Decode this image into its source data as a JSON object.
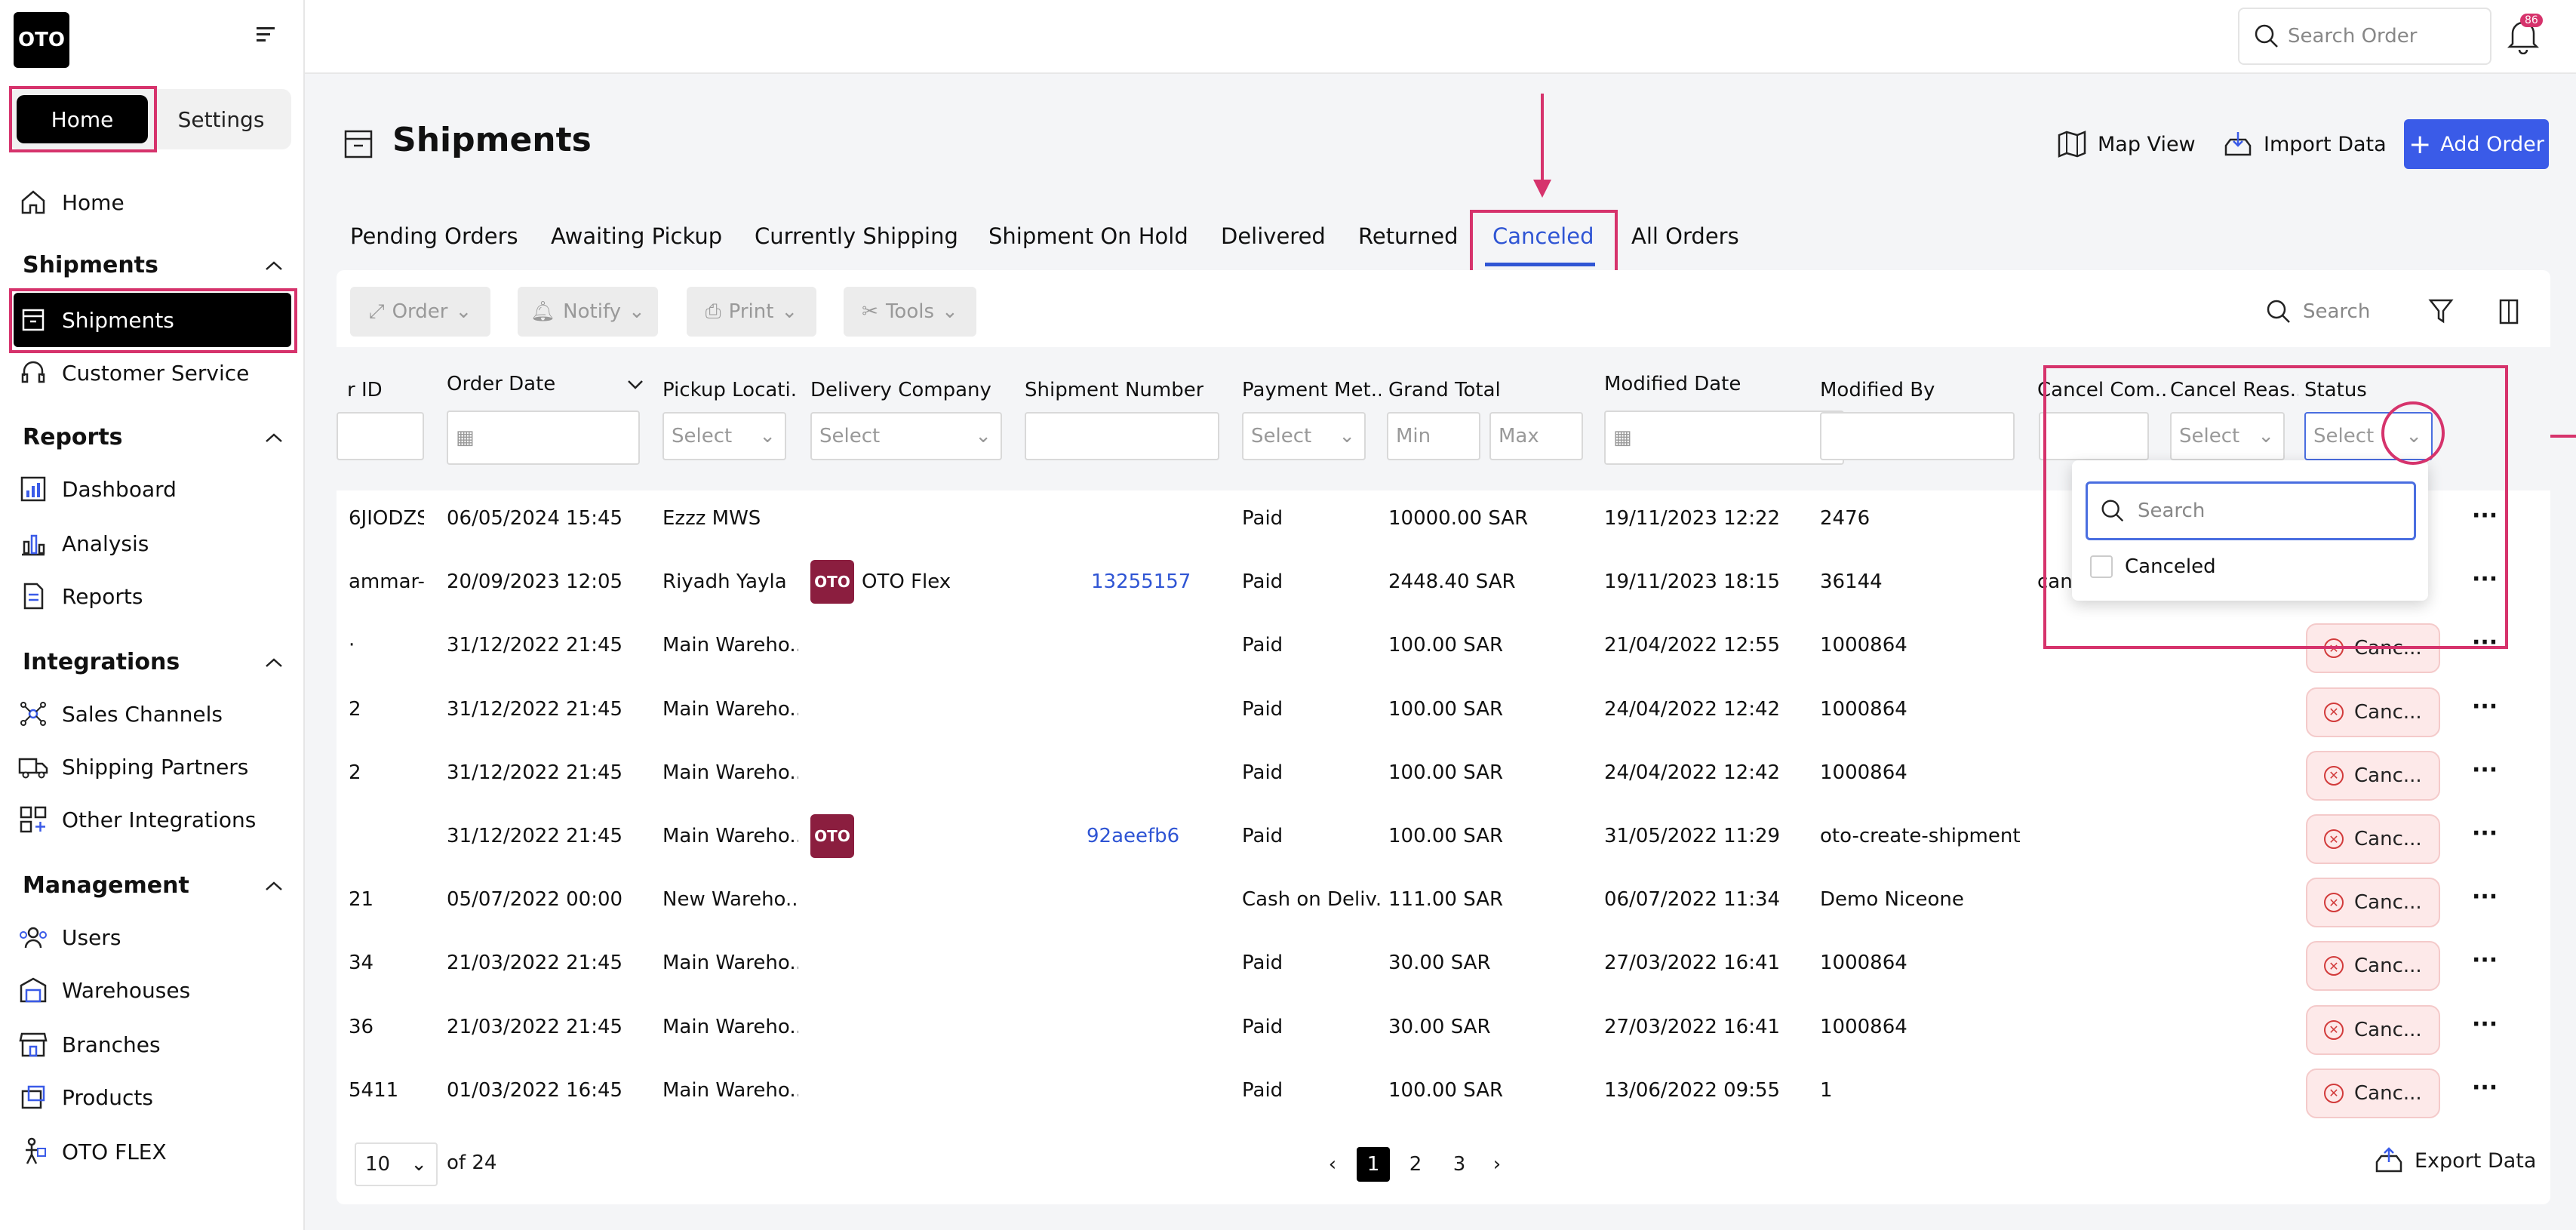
{
  "sidebar": {
    "logo": "OTO",
    "seg_home": "Home",
    "seg_settings": "Settings",
    "home": "Home",
    "sections": {
      "shipments": "Shipments",
      "reports": "Reports",
      "integrations": "Integrations",
      "management": "Management"
    },
    "items": {
      "shipments": "Shipments",
      "customer_service": "Customer Service",
      "dashboard": "Dashboard",
      "analysis": "Analysis",
      "reports": "Reports",
      "sales_channels": "Sales Channels",
      "shipping_partners": "Shipping Partners",
      "other_integrations": "Other Integrations",
      "users": "Users",
      "warehouses": "Warehouses",
      "branches": "Branches",
      "products": "Products",
      "oto_flex": "OTO FLEX"
    }
  },
  "topbar": {
    "search_placeholder": "Search Order",
    "badge": "86"
  },
  "page": {
    "title": "Shipments",
    "map_view": "Map View",
    "import_data": "Import Data",
    "add_order": "Add Order"
  },
  "tabs": [
    "Pending Orders",
    "Awaiting Pickup",
    "Currently Shipping",
    "Shipment On Hold",
    "Delivered",
    "Returned",
    "Canceled",
    "All Orders"
  ],
  "toolbar": {
    "order": "Order",
    "notify": "Notify",
    "print": "Print",
    "tools": "Tools",
    "search": "Search"
  },
  "columns": {
    "id": "r ID",
    "order_date": "Order Date",
    "pickup": "Pickup Locati...",
    "delivery": "Delivery Company",
    "shipment_number": "Shipment Number",
    "payment": "Payment Met...",
    "grand_total": "Grand Total",
    "modified_date": "Modified Date",
    "modified_by": "Modified By",
    "cancel_com": "Cancel Com...",
    "cancel_reason": "Cancel Reas...",
    "status": "Status"
  },
  "filters": {
    "select": "Select",
    "min": "Min",
    "max": "Max"
  },
  "dropdown": {
    "search_placeholder": "Search",
    "option": "Canceled"
  },
  "rows": [
    {
      "id": "6JIODZS...",
      "date": "06/05/2024 15:45",
      "pickup": "Ezzz MWS",
      "delivery": "",
      "logo": "",
      "shipment": "",
      "payment": "Paid",
      "total": "10000.00 SAR",
      "modified": "19/11/2023 12:22",
      "by": "2476",
      "cancel_com": "",
      "status": ""
    },
    {
      "id": "ammar-1...",
      "date": "20/09/2023 12:05",
      "pickup": "Riyadh Yayla",
      "delivery": "OTO Flex",
      "logo": "OTO",
      "shipment": "13255157",
      "payment": "Paid",
      "total": "2448.40 SAR",
      "modified": "19/11/2023 18:15",
      "by": "36144",
      "cancel_com": "can",
      "status": ""
    },
    {
      "id": "·",
      "date": "31/12/2022 21:45",
      "pickup": "Main Wareho...",
      "delivery": "",
      "logo": "",
      "shipment": "",
      "payment": "Paid",
      "total": "100.00 SAR",
      "modified": "21/04/2022 12:55",
      "by": "1000864",
      "cancel_com": "",
      "status": "Canc..."
    },
    {
      "id": "2",
      "date": "31/12/2022 21:45",
      "pickup": "Main Wareho...",
      "delivery": "",
      "logo": "",
      "shipment": "",
      "payment": "Paid",
      "total": "100.00 SAR",
      "modified": "24/04/2022 12:42",
      "by": "1000864",
      "cancel_com": "",
      "status": "Canc..."
    },
    {
      "id": "2",
      "date": "31/12/2022 21:45",
      "pickup": "Main Wareho...",
      "delivery": "",
      "logo": "",
      "shipment": "",
      "payment": "Paid",
      "total": "100.00 SAR",
      "modified": "24/04/2022 12:42",
      "by": "1000864",
      "cancel_com": "",
      "status": "Canc..."
    },
    {
      "id": "",
      "date": "31/12/2022 21:45",
      "pickup": "Main Wareho...",
      "delivery": "",
      "logo": "OTO",
      "shipment": "92aeefb6",
      "payment": "Paid",
      "total": "100.00 SAR",
      "modified": "31/05/2022 11:29",
      "by": "oto-create-shipment",
      "cancel_com": "",
      "status": "Canc..."
    },
    {
      "id": "21",
      "date": "05/07/2022 00:00",
      "pickup": "New Wareho...",
      "delivery": "",
      "logo": "",
      "shipment": "",
      "payment": "Cash on Deliv...",
      "total": "111.00 SAR",
      "modified": "06/07/2022 11:34",
      "by": "Demo Niceone",
      "cancel_com": "",
      "status": "Canc..."
    },
    {
      "id": "34",
      "date": "21/03/2022 21:45",
      "pickup": "Main Wareho...",
      "delivery": "",
      "logo": "",
      "shipment": "",
      "payment": "Paid",
      "total": "30.00 SAR",
      "modified": "27/03/2022 16:41",
      "by": "1000864",
      "cancel_com": "",
      "status": "Canc..."
    },
    {
      "id": "36",
      "date": "21/03/2022 21:45",
      "pickup": "Main Wareho...",
      "delivery": "",
      "logo": "",
      "shipment": "",
      "payment": "Paid",
      "total": "30.00 SAR",
      "modified": "27/03/2022 16:41",
      "by": "1000864",
      "cancel_com": "",
      "status": "Canc..."
    },
    {
      "id": "5411",
      "date": "01/03/2022 16:45",
      "pickup": "Main Wareho...",
      "delivery": "",
      "logo": "",
      "shipment": "",
      "payment": "Paid",
      "total": "100.00 SAR",
      "modified": "13/06/2022 09:55",
      "by": "1",
      "cancel_com": "",
      "status": "Canc..."
    }
  ],
  "footer": {
    "per_page": "10",
    "of": "of 24",
    "pages": [
      "1",
      "2",
      "3"
    ],
    "export": "Export Data"
  },
  "colors": {
    "accent": "#3a5be8",
    "highlight": "#d6336c",
    "oto_brand": "#8b1e3f"
  }
}
